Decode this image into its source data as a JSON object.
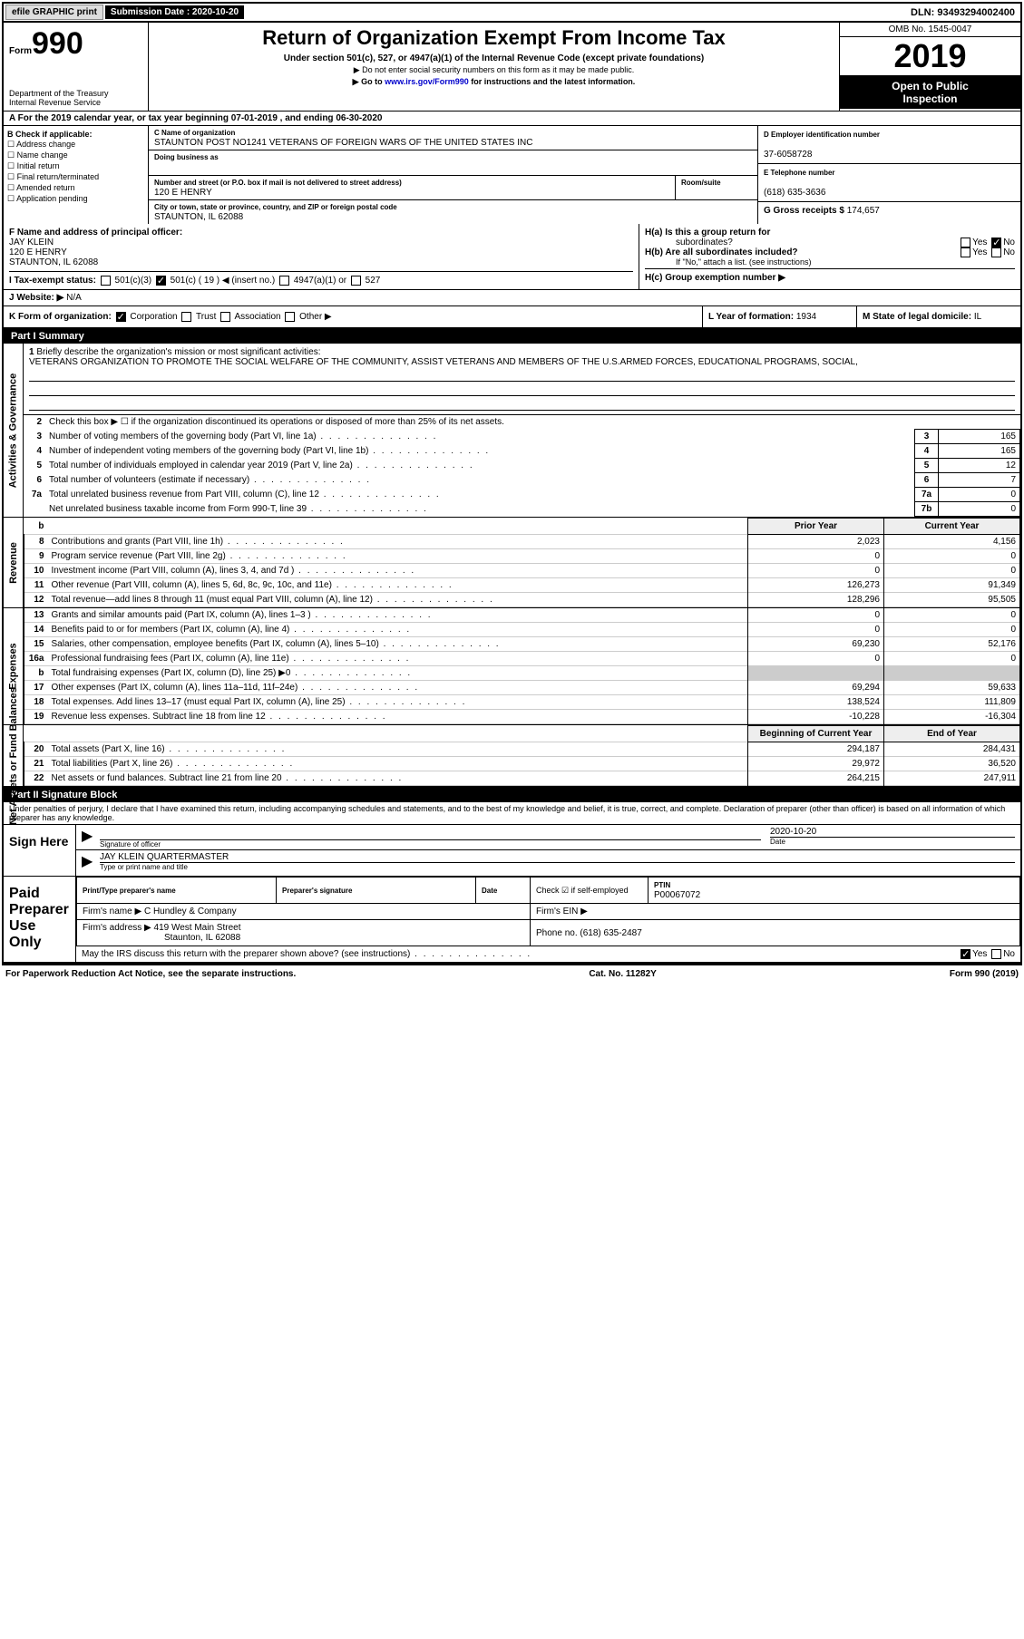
{
  "topbar": {
    "efile": "efile GRAPHIC print",
    "sub_label": "Submission Date : ",
    "sub_date": "2020-10-20",
    "dln": "DLN: 93493294002400"
  },
  "header": {
    "form_word": "Form",
    "form_num": "990",
    "dept": "Department of the Treasury",
    "irs": "Internal Revenue Service",
    "title": "Return of Organization Exempt From Income Tax",
    "sub1": "Under section 501(c), 527, or 4947(a)(1) of the Internal Revenue Code (except private foundations)",
    "sub2": "▶ Do not enter social security numbers on this form as it may be made public.",
    "sub3_pre": "▶ Go to ",
    "sub3_link": "www.irs.gov/Form990",
    "sub3_post": " for instructions and the latest information.",
    "omb": "OMB No. 1545-0047",
    "year": "2019",
    "open1": "Open to Public",
    "open2": "Inspection"
  },
  "line_a": "A For the 2019 calendar year, or tax year beginning 07-01-2019   , and ending 06-30-2020",
  "col_b": {
    "hdr": "B Check if applicable:",
    "items": [
      "Address change",
      "Name change",
      "Initial return",
      "Final return/terminated",
      "Amended return",
      "Application pending"
    ]
  },
  "org": {
    "name_lbl": "C Name of organization",
    "name": "STAUNTON POST NO1241 VETERANS OF FOREIGN WARS OF THE UNITED STATES INC",
    "dba_lbl": "Doing business as",
    "addr_lbl": "Number and street (or P.O. box if mail is not delivered to street address)",
    "room_lbl": "Room/suite",
    "addr": "120 E HENRY",
    "city_lbl": "City or town, state or province, country, and ZIP or foreign postal code",
    "city": "STAUNTON, IL  62088"
  },
  "col_de": {
    "ein_lbl": "D Employer identification number",
    "ein": "37-6058728",
    "tel_lbl": "E Telephone number",
    "tel": "(618) 635-3636",
    "gross_lbl": "G Gross receipts $",
    "gross": "174,657"
  },
  "f": {
    "lbl": "F Name and address of principal officer:",
    "name": "JAY KLEIN",
    "addr1": "120 E HENRY",
    "addr2": "STAUNTON, IL  62088"
  },
  "h": {
    "a": "H(a)  Is this a group return for",
    "a2": "subordinates?",
    "b": "H(b)  Are all subordinates included?",
    "b2": "If \"No,\" attach a list. (see instructions)",
    "c": "H(c)  Group exemption number ▶",
    "yes": "Yes",
    "no": "No"
  },
  "i": {
    "lbl": "I   Tax-exempt status:",
    "o1": "501(c)(3)",
    "o2": "501(c) ( 19 ) ◀ (insert no.)",
    "o3": "4947(a)(1) or",
    "o4": "527"
  },
  "j": {
    "lbl": "J   Website: ▶",
    "val": "N/A"
  },
  "k": {
    "lbl": "K Form of organization:",
    "o1": "Corporation",
    "o2": "Trust",
    "o3": "Association",
    "o4": "Other ▶"
  },
  "l": {
    "lbl": "L Year of formation:",
    "val": "1934"
  },
  "m": {
    "lbl": "M State of legal domicile:",
    "val": "IL"
  },
  "part1": {
    "hdr": "Part I    Summary",
    "vtab1": "Activities & Governance",
    "vtab2": "Revenue",
    "vtab3": "Expenses",
    "vtab4": "Net Assets or Fund Balances",
    "q1": "Briefly describe the organization's mission or most significant activities:",
    "mission": "VETERANS ORGANIZATION TO PROMOTE THE SOCIAL WELFARE OF THE COMMUNITY, ASSIST VETERANS AND MEMBERS OF THE U.S.ARMED FORCES, EDUCATIONAL PROGRAMS, SOCIAL,",
    "q2": "Check this box ▶ ☐  if the organization discontinued its operations or disposed of more than 25% of its net assets.",
    "lines_gov": [
      {
        "n": "3",
        "d": "Number of voting members of the governing body (Part VI, line 1a)",
        "bn": "3",
        "bv": "165"
      },
      {
        "n": "4",
        "d": "Number of independent voting members of the governing body (Part VI, line 1b)",
        "bn": "4",
        "bv": "165"
      },
      {
        "n": "5",
        "d": "Total number of individuals employed in calendar year 2019 (Part V, line 2a)",
        "bn": "5",
        "bv": "12"
      },
      {
        "n": "6",
        "d": "Total number of volunteers (estimate if necessary)",
        "bn": "6",
        "bv": "7"
      },
      {
        "n": "7a",
        "d": "Total unrelated business revenue from Part VIII, column (C), line 12",
        "bn": "7a",
        "bv": "0"
      },
      {
        "n": "",
        "d": "Net unrelated business taxable income from Form 990-T, line 39",
        "bn": "7b",
        "bv": "0"
      }
    ],
    "col_prior": "Prior Year",
    "col_curr": "Current Year",
    "rev": [
      {
        "n": "8",
        "d": "Contributions and grants (Part VIII, line 1h)",
        "p": "2,023",
        "c": "4,156"
      },
      {
        "n": "9",
        "d": "Program service revenue (Part VIII, line 2g)",
        "p": "0",
        "c": "0"
      },
      {
        "n": "10",
        "d": "Investment income (Part VIII, column (A), lines 3, 4, and 7d )",
        "p": "0",
        "c": "0"
      },
      {
        "n": "11",
        "d": "Other revenue (Part VIII, column (A), lines 5, 6d, 8c, 9c, 10c, and 11e)",
        "p": "126,273",
        "c": "91,349"
      },
      {
        "n": "12",
        "d": "Total revenue—add lines 8 through 11 (must equal Part VIII, column (A), line 12)",
        "p": "128,296",
        "c": "95,505"
      }
    ],
    "exp": [
      {
        "n": "13",
        "d": "Grants and similar amounts paid (Part IX, column (A), lines 1–3 )",
        "p": "0",
        "c": "0"
      },
      {
        "n": "14",
        "d": "Benefits paid to or for members (Part IX, column (A), line 4)",
        "p": "0",
        "c": "0"
      },
      {
        "n": "15",
        "d": "Salaries, other compensation, employee benefits (Part IX, column (A), lines 5–10)",
        "p": "69,230",
        "c": "52,176"
      },
      {
        "n": "16a",
        "d": "Professional fundraising fees (Part IX, column (A), line 11e)",
        "p": "0",
        "c": "0"
      },
      {
        "n": "b",
        "d": "Total fundraising expenses (Part IX, column (D), line 25) ▶0",
        "p": "",
        "c": "",
        "grey": true
      },
      {
        "n": "17",
        "d": "Other expenses (Part IX, column (A), lines 11a–11d, 11f–24e)",
        "p": "69,294",
        "c": "59,633"
      },
      {
        "n": "18",
        "d": "Total expenses. Add lines 13–17 (must equal Part IX, column (A), line 25)",
        "p": "138,524",
        "c": "111,809"
      },
      {
        "n": "19",
        "d": "Revenue less expenses. Subtract line 18 from line 12",
        "p": "-10,228",
        "c": "-16,304"
      }
    ],
    "col_beg": "Beginning of Current Year",
    "col_end": "End of Year",
    "net": [
      {
        "n": "20",
        "d": "Total assets (Part X, line 16)",
        "p": "294,187",
        "c": "284,431"
      },
      {
        "n": "21",
        "d": "Total liabilities (Part X, line 26)",
        "p": "29,972",
        "c": "36,520"
      },
      {
        "n": "22",
        "d": "Net assets or fund balances. Subtract line 21 from line 20",
        "p": "264,215",
        "c": "247,911"
      }
    ]
  },
  "part2": {
    "hdr": "Part II    Signature Block",
    "decl": "Under penalties of perjury, I declare that I have examined this return, including accompanying schedules and statements, and to the best of my knowledge and belief, it is true, correct, and complete. Declaration of preparer (other than officer) is based on all information of which preparer has any knowledge.",
    "sign_here": "Sign Here",
    "sig_officer": "Signature of officer",
    "sig_date_lbl": "Date",
    "sig_date": "2020-10-20",
    "sig_name": "JAY KLEIN  QUARTERMASTER",
    "sig_name_lbl": "Type or print name and title",
    "paid_lbl": "Paid Preparer Use Only",
    "prep_name_lbl": "Print/Type preparer's name",
    "prep_sig_lbl": "Preparer's signature",
    "date_lbl": "Date",
    "check_lbl": "Check ☑ if self-employed",
    "ptin_lbl": "PTIN",
    "ptin": "P00067072",
    "firm_name_lbl": "Firm's name    ▶",
    "firm_name": "C Hundley & Company",
    "firm_ein_lbl": "Firm's EIN ▶",
    "firm_addr_lbl": "Firm's address ▶",
    "firm_addr1": "419 West Main Street",
    "firm_addr2": "Staunton, IL  62088",
    "phone_lbl": "Phone no.",
    "phone": "(618) 635-2487",
    "discuss": "May the IRS discuss this return with the preparer shown above? (see instructions)",
    "yes": "Yes",
    "no": "No"
  },
  "footer": {
    "l": "For Paperwork Reduction Act Notice, see the separate instructions.",
    "m": "Cat. No. 11282Y",
    "r": "Form 990 (2019)"
  }
}
